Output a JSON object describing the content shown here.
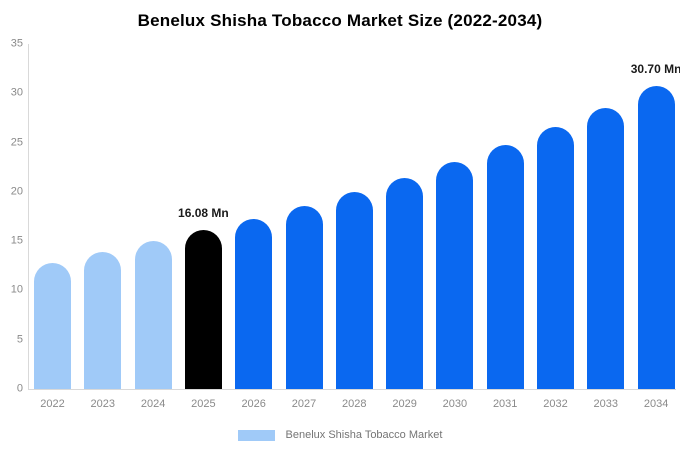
{
  "title": "Benelux Shisha Tobacco Market Size (2022-2034)",
  "colors": {
    "bar_light": "#a0caf8",
    "bar_black": "#000000",
    "bar_blue": "#0a68f0",
    "axis_line": "#d9d9d9",
    "tick_text": "#8a8a8a",
    "annotation_text": "#1a1a1a",
    "legend_text": "#757575"
  },
  "chart_data": {
    "type": "bar",
    "title": "Benelux Shisha Tobacco Market Size (2022-2034)",
    "categories": [
      "2022",
      "2023",
      "2024",
      "2025",
      "2026",
      "2027",
      "2028",
      "2029",
      "2030",
      "2031",
      "2032",
      "2033",
      "2034"
    ],
    "values": [
      12.8,
      13.9,
      14.97,
      16.08,
      17.28,
      18.57,
      19.95,
      21.44,
      23.0,
      24.75,
      26.55,
      28.5,
      30.7
    ],
    "bar_colors": [
      "light",
      "light",
      "light",
      "black",
      "blue",
      "blue",
      "blue",
      "blue",
      "blue",
      "blue",
      "blue",
      "blue",
      "blue"
    ],
    "annotations": [
      {
        "category": "2025",
        "text": "16.08 Mn"
      },
      {
        "category": "2034",
        "text": "30.70 Mn"
      }
    ],
    "xlabel": "",
    "ylabel": "",
    "ylim": [
      0,
      35
    ],
    "yticks": [
      0,
      5,
      10,
      15,
      20,
      25,
      30,
      35
    ],
    "grid": false,
    "legend_position": "bottom",
    "legend": [
      {
        "label": "Benelux Shisha Tobacco Market",
        "color_key": "bar_light"
      }
    ]
  }
}
